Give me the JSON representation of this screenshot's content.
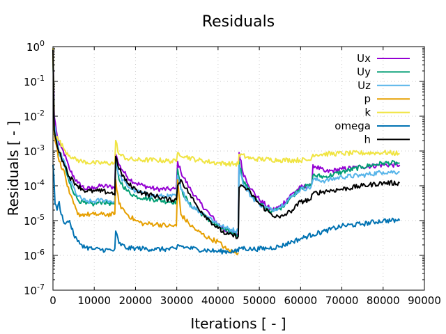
{
  "chart_data": {
    "type": "line",
    "title": "Residuals",
    "xlabel": "Iterations [ - ]",
    "ylabel": "Residuals [ - ]",
    "xlim": [
      0,
      90000
    ],
    "ylim": [
      1e-07,
      1
    ],
    "yscale": "log",
    "grid": true,
    "legend_position": "top-right",
    "xticks": [
      "0",
      "10000",
      "20000",
      "30000",
      "40000",
      "50000",
      "60000",
      "70000",
      "80000",
      "90000"
    ],
    "xtick_values": [
      0,
      10000,
      20000,
      30000,
      40000,
      50000,
      60000,
      70000,
      80000,
      90000
    ],
    "yticks": [
      {
        "value": 1,
        "mant": "10",
        "exp": "0"
      },
      {
        "value": 0.1,
        "mant": "10",
        "exp": "-1"
      },
      {
        "value": 0.01,
        "mant": "10",
        "exp": "-2"
      },
      {
        "value": 0.001,
        "mant": "10",
        "exp": "-3"
      },
      {
        "value": 0.0001,
        "mant": "10",
        "exp": "-4"
      },
      {
        "value": 1e-05,
        "mant": "10",
        "exp": "-5"
      },
      {
        "value": 1e-06,
        "mant": "10",
        "exp": "-6"
      },
      {
        "value": 1e-07,
        "mant": "10",
        "exp": "-7"
      }
    ],
    "series": [
      {
        "name": "Ux",
        "color": "#9400d3",
        "x": [
          0,
          300,
          800,
          1500,
          2500,
          4000,
          6000,
          8000,
          10000,
          12000,
          14800,
          15200,
          16000,
          18000,
          20000,
          22000,
          25000,
          28000,
          29900,
          30200,
          31000,
          33000,
          35000,
          38000,
          40000,
          42000,
          44900,
          45100,
          46000,
          48000,
          50000,
          53000,
          55000,
          58000,
          60000,
          62500,
          63000,
          66000,
          70000,
          75000,
          80000,
          84000
        ],
        "y": [
          0.8,
          0.01,
          0.004,
          0.0015,
          0.001,
          0.0003,
          0.00012,
          8e-05,
          9e-05,
          0.0001,
          9e-05,
          0.0008,
          0.0004,
          0.00018,
          0.00012,
          0.0001,
          8e-05,
          8e-05,
          8e-05,
          0.0005,
          0.00025,
          9e-05,
          4e-05,
          1.5e-05,
          8e-06,
          5e-06,
          4e-06,
          0.0009,
          0.00025,
          8e-05,
          4e-05,
          2e-05,
          2.5e-05,
          6e-05,
          9e-05,
          0.0001,
          0.0004,
          0.00025,
          0.0003,
          0.00035,
          0.0004,
          0.0004
        ]
      },
      {
        "name": "Uy",
        "color": "#009e73",
        "x": [
          0,
          300,
          800,
          1500,
          2500,
          4000,
          6000,
          8000,
          10000,
          12000,
          14800,
          15200,
          16000,
          18000,
          20000,
          22000,
          25000,
          28000,
          29900,
          30200,
          31000,
          33000,
          35000,
          38000,
          40000,
          42000,
          44900,
          45100,
          46000,
          48000,
          50000,
          53000,
          55000,
          58000,
          60000,
          62500,
          63000,
          66000,
          70000,
          75000,
          80000,
          84000
        ],
        "y": [
          0.6,
          0.005,
          0.002,
          0.0008,
          0.0005,
          0.00012,
          4e-05,
          3e-05,
          3e-05,
          3.5e-05,
          3e-05,
          0.0005,
          0.00015,
          7e-05,
          5e-05,
          4.5e-05,
          4e-05,
          3.5e-05,
          3.5e-05,
          0.0003,
          8e-05,
          3e-05,
          2e-05,
          1e-05,
          7e-06,
          5e-06,
          4e-06,
          0.0005,
          0.00015,
          6e-05,
          3e-05,
          1.8e-05,
          2.2e-05,
          5e-05,
          9e-05,
          0.0001,
          0.0002,
          0.00018,
          0.00025,
          0.00035,
          0.00045,
          0.00045
        ]
      },
      {
        "name": "Uz",
        "color": "#56b4e9",
        "x": [
          0,
          300,
          800,
          1500,
          2500,
          4000,
          6000,
          8000,
          10000,
          12000,
          14800,
          15200,
          16000,
          18000,
          20000,
          22000,
          25000,
          28000,
          29900,
          30200,
          31000,
          33000,
          35000,
          38000,
          40000,
          42000,
          44900,
          45100,
          46000,
          48000,
          50000,
          53000,
          55000,
          58000,
          60000,
          62500,
          63000,
          66000,
          70000,
          75000,
          80000,
          84000
        ],
        "y": [
          0.7,
          0.006,
          0.0025,
          0.0009,
          0.0006,
          0.00015,
          5e-05,
          3.5e-05,
          3.5e-05,
          4e-05,
          3.5e-05,
          0.0006,
          0.0002,
          0.0001,
          7e-05,
          6e-05,
          5e-05,
          5e-05,
          5e-05,
          0.0002,
          8e-05,
          3e-05,
          2e-05,
          1.2e-05,
          8e-06,
          6e-06,
          5e-06,
          0.0004,
          0.00012,
          5e-05,
          3e-05,
          2e-05,
          2.5e-05,
          5e-05,
          8e-05,
          9e-05,
          0.00015,
          0.00014,
          0.00018,
          0.0002,
          0.00025,
          0.00025
        ]
      },
      {
        "name": "p",
        "color": "#e69f00",
        "x": [
          0,
          300,
          800,
          1500,
          2500,
          4000,
          6000,
          8000,
          10000,
          12000,
          14800,
          15200,
          16000,
          18000,
          20000,
          22000,
          25000,
          28000,
          29900,
          30200,
          31000,
          33000,
          35000,
          38000,
          40000,
          42000,
          44000,
          44900
        ],
        "y": [
          0.9,
          0.003,
          0.0015,
          0.0005,
          0.0003,
          6e-05,
          1.5e-05,
          1.5e-05,
          1.5e-05,
          1.5e-05,
          1.5e-05,
          0.00015,
          3e-05,
          1.5e-05,
          1e-05,
          8e-06,
          8e-06,
          7e-06,
          7e-06,
          0.00015,
          1.5e-05,
          8e-06,
          5e-06,
          3e-06,
          2.5e-06,
          1.5e-06,
          1.2e-06,
          1.2e-06
        ]
      },
      {
        "name": "k",
        "color": "#f0e442",
        "x": [
          0,
          300,
          1500,
          3000,
          5000,
          7000,
          10000,
          14800,
          15200,
          16000,
          18000,
          20000,
          25000,
          29900,
          30200,
          32000,
          35000,
          40000,
          44900,
          45100,
          48000,
          55000,
          62000,
          62500,
          63000,
          70000,
          80000,
          84000
        ],
        "y": [
          0.9,
          0.003,
          0.002,
          0.001,
          0.0006,
          0.0005,
          0.00045,
          0.00045,
          0.002,
          0.0008,
          0.0006,
          0.00055,
          0.00055,
          0.0005,
          0.0009,
          0.0007,
          0.00055,
          0.00045,
          0.00042,
          0.0008,
          0.0006,
          0.00055,
          0.00055,
          0.00055,
          0.0008,
          0.00085,
          0.0009,
          0.00085
        ]
      },
      {
        "name": "omega",
        "color": "#0072b2",
        "x": [
          0,
          200,
          500,
          1000,
          1500,
          2000,
          3000,
          4000,
          5000,
          6000,
          7000,
          8000,
          10000,
          14800,
          15200,
          16000,
          18000,
          20000,
          25000,
          29900,
          30200,
          32000,
          35000,
          40000,
          44900,
          45100,
          48000,
          52000,
          55000,
          58000,
          60000,
          63000,
          66000,
          70000,
          75000,
          80000,
          84000
        ],
        "y": [
          0.0004,
          0.0002,
          3e-05,
          2e-05,
          3.5e-05,
          1.5e-05,
          8e-06,
          1e-05,
          4e-06,
          2.5e-06,
          2e-06,
          1.7e-06,
          1.5e-06,
          1.4e-06,
          5e-06,
          2.2e-06,
          1.6e-06,
          1.6e-06,
          1.5e-06,
          1.5e-06,
          2e-06,
          1.7e-06,
          1.5e-06,
          1.3e-06,
          1.3e-06,
          1.7e-06,
          1.5e-06,
          1.6e-06,
          1.8e-06,
          2.5e-06,
          3e-06,
          4e-06,
          5e-06,
          7e-06,
          8e-06,
          1e-05,
          1e-05
        ]
      },
      {
        "name": "h",
        "color": "#000000",
        "x": [
          0,
          300,
          800,
          1500,
          2500,
          4000,
          6000,
          8000,
          10000,
          12000,
          14800,
          15200,
          16000,
          18000,
          20000,
          22000,
          25000,
          28000,
          29900,
          30200,
          31000,
          33000,
          35000,
          38000,
          40000,
          42000,
          44900,
          45100,
          46000,
          48000,
          50000,
          53000,
          55000,
          58000,
          60000,
          62500,
          63000,
          66000,
          70000,
          75000,
          80000,
          84000
        ],
        "y": [
          0.8,
          0.004,
          0.002,
          0.0009,
          0.0005,
          0.00018,
          0.0001,
          7e-05,
          7e-05,
          7e-05,
          6e-05,
          0.0007,
          0.0003,
          0.00012,
          8e-05,
          6e-05,
          5e-05,
          4e-05,
          4e-05,
          0.0001,
          0.00015,
          6e-05,
          2.5e-05,
          1e-05,
          6e-06,
          4e-06,
          3.5e-06,
          9e-05,
          0.0001,
          6e-05,
          3e-05,
          1.5e-05,
          1.2e-05,
          2e-05,
          3.5e-05,
          4e-05,
          6e-05,
          7e-05,
          8e-05,
          0.0001,
          0.00012,
          0.00012
        ]
      }
    ]
  }
}
